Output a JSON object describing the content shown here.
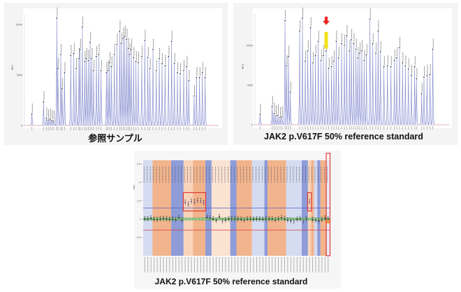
{
  "chart_data": [
    {
      "type": "line",
      "subtype": "electropherogram",
      "title": "参照サンプル",
      "ylabel": "RFU",
      "yticks": [
        "10000",
        "5000",
        "0"
      ],
      "ytick_values": [
        10000,
        5000,
        0
      ],
      "xlim": [
        100,
        940
      ],
      "ylim": [
        0,
        11000
      ],
      "peaks": {
        "size": [
          138,
          188,
          200,
          208,
          216,
          224,
          232,
          245,
          250,
          262,
          268,
          278,
          305,
          318,
          328,
          340,
          345,
          355,
          365,
          372,
          380,
          388,
          395,
          403,
          415,
          425,
          435,
          458,
          465,
          472,
          480,
          492,
          503,
          515,
          522,
          530,
          537,
          545,
          552,
          558,
          565,
          575,
          585,
          595,
          610,
          623,
          636,
          645,
          658,
          672,
          685,
          697,
          710,
          725,
          738,
          750,
          763,
          775,
          790,
          803,
          812,
          835,
          845,
          858,
          870,
          882
        ],
        "height": [
          1200,
          2400,
          800,
          600,
          700,
          550,
          500,
          10700,
          5700,
          7100,
          3700,
          5300,
          7000,
          7200,
          5700,
          6700,
          7600,
          9800,
          6400,
          6700,
          6500,
          8300,
          6700,
          5500,
          6900,
          7100,
          5500,
          5300,
          5500,
          6300,
          5900,
          7100,
          8100,
          9400,
          8200,
          8700,
          8900,
          8600,
          7700,
          7100,
          7600,
          6800,
          6400,
          6300,
          6900,
          8500,
          6800,
          5700,
          7600,
          5500,
          6700,
          6200,
          6000,
          6900,
          8400,
          6200,
          5300,
          5200,
          5500,
          5900,
          4500,
          3000,
          4800,
          4800,
          5300,
          4800
        ]
      }
    },
    {
      "type": "line",
      "subtype": "electropherogram",
      "title": "JAK2 p.V617F 50% reference standard",
      "ylabel": "RFU",
      "yticks": [
        "10000",
        "5000",
        "0"
      ],
      "ytick_values": [
        10000,
        5000,
        0
      ],
      "xlim": [
        100,
        940
      ],
      "ylim": [
        0,
        14000
      ],
      "highlighted_peak_index": 21,
      "highlight_color": "#f2e21a",
      "arrow_color": "#e8231e",
      "peaks": {
        "size": [
          128,
          180,
          188,
          196,
          205,
          214,
          222,
          235,
          242,
          250,
          258,
          298,
          310,
          322,
          333,
          345,
          355,
          366,
          378,
          390,
          400,
          412,
          435,
          423,
          445,
          455,
          465,
          478,
          490,
          500,
          512,
          520,
          530,
          540,
          548,
          556,
          565,
          575,
          585,
          600,
          612,
          625,
          635,
          645,
          660,
          675,
          690,
          705,
          715,
          727,
          740,
          752,
          765,
          778,
          792,
          800,
          822,
          832,
          845,
          858,
          870
        ],
        "height": [
          1400,
          2400,
          1500,
          1200,
          1300,
          1000,
          1100,
          13200,
          7500,
          8700,
          4200,
          11900,
          13500,
          8100,
          9400,
          12300,
          7900,
          8800,
          10600,
          8200,
          8800,
          9400,
          7400,
          7200,
          8100,
          10600,
          8500,
          10300,
          10100,
          11300,
          9400,
          10800,
          10300,
          9600,
          8500,
          9100,
          9400,
          8200,
          8900,
          13400,
          10300,
          9100,
          11900,
          9300,
          7400,
          7500,
          7400,
          8200,
          8500,
          9800,
          7900,
          7500,
          7100,
          6300,
          7400,
          5900,
          4000,
          6100,
          6300,
          6400,
          9600
        ]
      }
    },
    {
      "type": "scatter",
      "subtype": "MLPA ratio plot",
      "title": "JAK2 p.V617F 50% reference standard",
      "ylabel": "ratio",
      "yticks": [
        "2.5",
        "2",
        "1.5",
        "1",
        "0.5"
      ],
      "ytick_values": [
        2.5,
        2,
        1.5,
        1,
        0.5
      ],
      "ylim": [
        0,
        2.6
      ],
      "upper_threshold": 1.3,
      "lower_threshold": 0.7,
      "upper_color": "#5560c8",
      "lower_color": "#d8393a",
      "bands": [
        {
          "color": "#d5dcf2",
          "probes": 3
        },
        {
          "color": "#f2b48c",
          "probes": 6
        },
        {
          "color": "#8e9cd8",
          "probes": 4
        },
        {
          "color": "#f9d4ba",
          "probes": 3
        },
        {
          "color": "#f2b48c",
          "probes": 4
        },
        {
          "color": "#8e9cd8",
          "probes": 2
        },
        {
          "color": "#fbe3d2",
          "probes": 6
        },
        {
          "color": "#8e9cd8",
          "probes": 2
        },
        {
          "color": "#f2b48c",
          "probes": 5
        },
        {
          "color": "#d5dcf2",
          "probes": 4
        },
        {
          "color": "#8e9cd8",
          "probes": 1
        },
        {
          "color": "#f2b48c",
          "probes": 6
        },
        {
          "color": "#d5dcf2",
          "probes": 5
        },
        {
          "color": "#8e9cd8",
          "probes": 2
        },
        {
          "color": "#f9d4ba",
          "probes": 1
        },
        {
          "color": "#f2b48c",
          "probes": 1
        },
        {
          "color": "#d5dcf2",
          "probes": 1
        },
        {
          "color": "#8e9cd8",
          "probes": 1
        },
        {
          "color": "#f2b48c",
          "probes": 2
        },
        {
          "color": "#e6eaf7",
          "probes": 1
        }
      ],
      "ratios": [
        1.0,
        1.0,
        1.02,
        0.99,
        0.98,
        1.0,
        1.01,
        1.0,
        0.99,
        1.0,
        0.98,
        1.03,
        0.97,
        1.45,
        1.4,
        1.48,
        1.46,
        1.5,
        1.49,
        1.44,
        1.04,
        1.02,
        1.0,
        0.96,
        1.06,
        0.94,
        0.97,
        1.0,
        1.0,
        1.0,
        1.0,
        0.99,
        0.97,
        1.0,
        1.0,
        0.99,
        1.0,
        1.0,
        0.99,
        1.0,
        1.0,
        1.0,
        0.97,
        1.0,
        1.03,
        1.0,
        0.97,
        0.95,
        0.93,
        0.99,
        1.0,
        0.94,
        1.0,
        1.47,
        0.98,
        0.96,
        0.95,
        0.98,
        1.02,
        1.0
      ],
      "highlight_boxes": [
        [
          13,
          19
        ],
        [
          53,
          53
        ],
        [
          59,
          59
        ]
      ]
    }
  ],
  "captions": {
    "left": "参照サンプル",
    "right": "JAK2 p.V617F 50% reference standard",
    "bottom": "JAK2 p.V617F 50% reference standard"
  }
}
